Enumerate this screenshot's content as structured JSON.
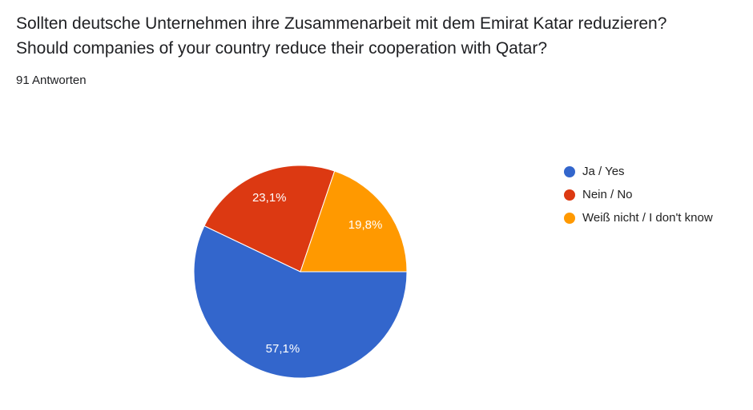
{
  "header": {
    "title": [
      "Sollten deutsche Unternehmen ihre Zusammenarbeit mit dem Emirat Katar reduzieren?",
      "Should companies of your country reduce their cooperation with Qatar?"
    ],
    "responses": "91 Antworten"
  },
  "chart_data": {
    "type": "pie",
    "categories": [
      "Ja / Yes",
      "Nein / No",
      "Weiß nicht / I don't know"
    ],
    "values": [
      57.1,
      23.1,
      19.8
    ],
    "value_labels": [
      "57,1%",
      "23,1%",
      "19,8%"
    ],
    "colors": [
      "#3366cc",
      "#dc3912",
      "#ff9900"
    ]
  }
}
